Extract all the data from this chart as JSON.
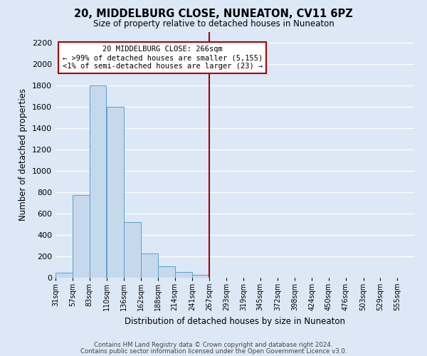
{
  "title": "20, MIDDELBURG CLOSE, NUNEATON, CV11 6PZ",
  "subtitle": "Size of property relative to detached houses in Nuneaton",
  "xlabel": "Distribution of detached houses by size in Nuneaton",
  "ylabel": "Number of detached properties",
  "footnote1": "Contains HM Land Registry data © Crown copyright and database right 2024.",
  "footnote2": "Contains public sector information licensed under the Open Government Licence v3.0.",
  "bin_labels": [
    "31sqm",
    "57sqm",
    "83sqm",
    "110sqm",
    "136sqm",
    "162sqm",
    "188sqm",
    "214sqm",
    "241sqm",
    "267sqm",
    "293sqm",
    "319sqm",
    "345sqm",
    "372sqm",
    "398sqm",
    "424sqm",
    "450sqm",
    "476sqm",
    "503sqm",
    "529sqm",
    "555sqm"
  ],
  "bar_heights": [
    50,
    775,
    1800,
    1600,
    520,
    230,
    105,
    55,
    25,
    0,
    0,
    0,
    0,
    0,
    0,
    0,
    0,
    0,
    0,
    0,
    0
  ],
  "bar_color": "#c6d9ec",
  "bar_edge_color": "#5a9ec8",
  "property_line_label": "20 MIDDELBURG CLOSE: 266sqm",
  "annotation_line2": "← >99% of detached houses are smaller (5,155)",
  "annotation_line3": "<1% of semi-detached houses are larger (23) →",
  "vline_color": "#aa0000",
  "annotation_box_edge": "#aa0000",
  "ylim": [
    0,
    2300
  ],
  "yticks": [
    0,
    200,
    400,
    600,
    800,
    1000,
    1200,
    1400,
    1600,
    1800,
    2000,
    2200
  ],
  "bin_edges": [
    31,
    57,
    83,
    110,
    136,
    162,
    188,
    214,
    241,
    267,
    293,
    319,
    345,
    372,
    398,
    424,
    450,
    476,
    503,
    529,
    555
  ],
  "vline_x_index": 9,
  "bg_color": "#dce8f5",
  "grid_color": "#ffffff"
}
